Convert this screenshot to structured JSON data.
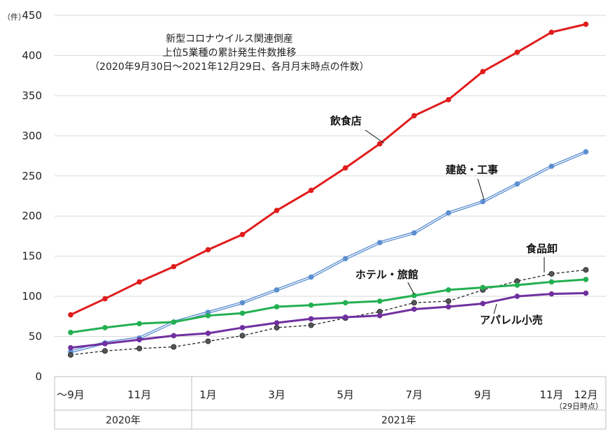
{
  "chart_data": {
    "type": "line",
    "title_lines": [
      "新型コロナウイルス関連倒産",
      "上位5業種の累計発生件数推移",
      "（2020年9月30日～2021年12月29日、各月月末時点の件数）"
    ],
    "ylabel": "（件）",
    "ylim": [
      0,
      450
    ],
    "yticks": [
      0,
      50,
      100,
      150,
      200,
      250,
      300,
      350,
      400,
      450
    ],
    "x_tick_labels": [
      "～9月",
      "11月",
      "1月",
      "3月",
      "5月",
      "7月",
      "9月",
      "11月",
      "12月"
    ],
    "x_tick_note": "（29日時点）",
    "year_labels": [
      "2020年",
      "2021年"
    ],
    "series": [
      {
        "name": "飲食店",
        "color": "#e01c1c",
        "style": "solid",
        "values": [
          77,
          97,
          118,
          137,
          158,
          177,
          207,
          232,
          260,
          290,
          325,
          345,
          380,
          404,
          429,
          439
        ]
      },
      {
        "name": "建設・工事",
        "color": "#5b8ed0",
        "style": "double",
        "values": [
          31,
          42,
          48,
          68,
          80,
          92,
          108,
          124,
          147,
          167,
          179,
          204,
          218,
          240,
          262,
          280
        ]
      },
      {
        "name": "食品卸",
        "color": "#222222",
        "style": "dashed",
        "values": [
          27,
          32,
          35,
          37,
          44,
          51,
          61,
          64,
          73,
          81,
          92,
          94,
          108,
          119,
          128,
          133
        ]
      },
      {
        "name": "ホテル・旅館",
        "color": "#22b050",
        "style": "solid",
        "values": [
          55,
          61,
          66,
          68,
          76,
          79,
          87,
          89,
          92,
          94,
          101,
          108,
          111,
          114,
          118,
          121
        ]
      },
      {
        "name": "アパレル小売",
        "color": "#7030a0",
        "style": "solid",
        "values": [
          36,
          41,
          46,
          51,
          54,
          61,
          67,
          72,
          74,
          76,
          84,
          87,
          91,
          100,
          103,
          104
        ]
      }
    ]
  }
}
